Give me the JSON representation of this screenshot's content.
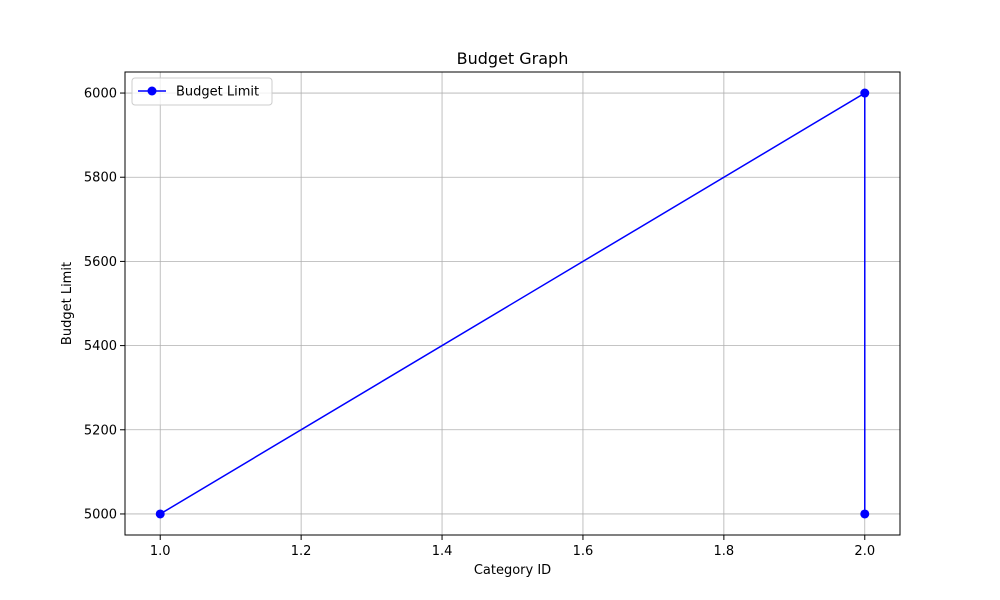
{
  "chart_data": {
    "type": "line",
    "title": "Budget Graph",
    "xlabel": "Category ID",
    "ylabel": "Budget Limit",
    "xlim": [
      0.95,
      2.05
    ],
    "ylim": [
      4950,
      6050
    ],
    "xticks": [
      1.0,
      1.2,
      1.4,
      1.6,
      1.8,
      2.0
    ],
    "xtick_labels": [
      "1.0",
      "1.2",
      "1.4",
      "1.6",
      "1.8",
      "2.0"
    ],
    "yticks": [
      5000,
      5200,
      5400,
      5600,
      5800,
      6000
    ],
    "ytick_labels": [
      "5000",
      "5200",
      "5400",
      "5600",
      "5800",
      "6000"
    ],
    "grid": true,
    "legend": "top-left",
    "series": [
      {
        "name": "Budget Limit",
        "color": "#0000ff",
        "marker": "circle",
        "x": [
          1.0,
          2.0,
          2.0
        ],
        "y": [
          5000,
          6000,
          5000
        ]
      }
    ]
  }
}
